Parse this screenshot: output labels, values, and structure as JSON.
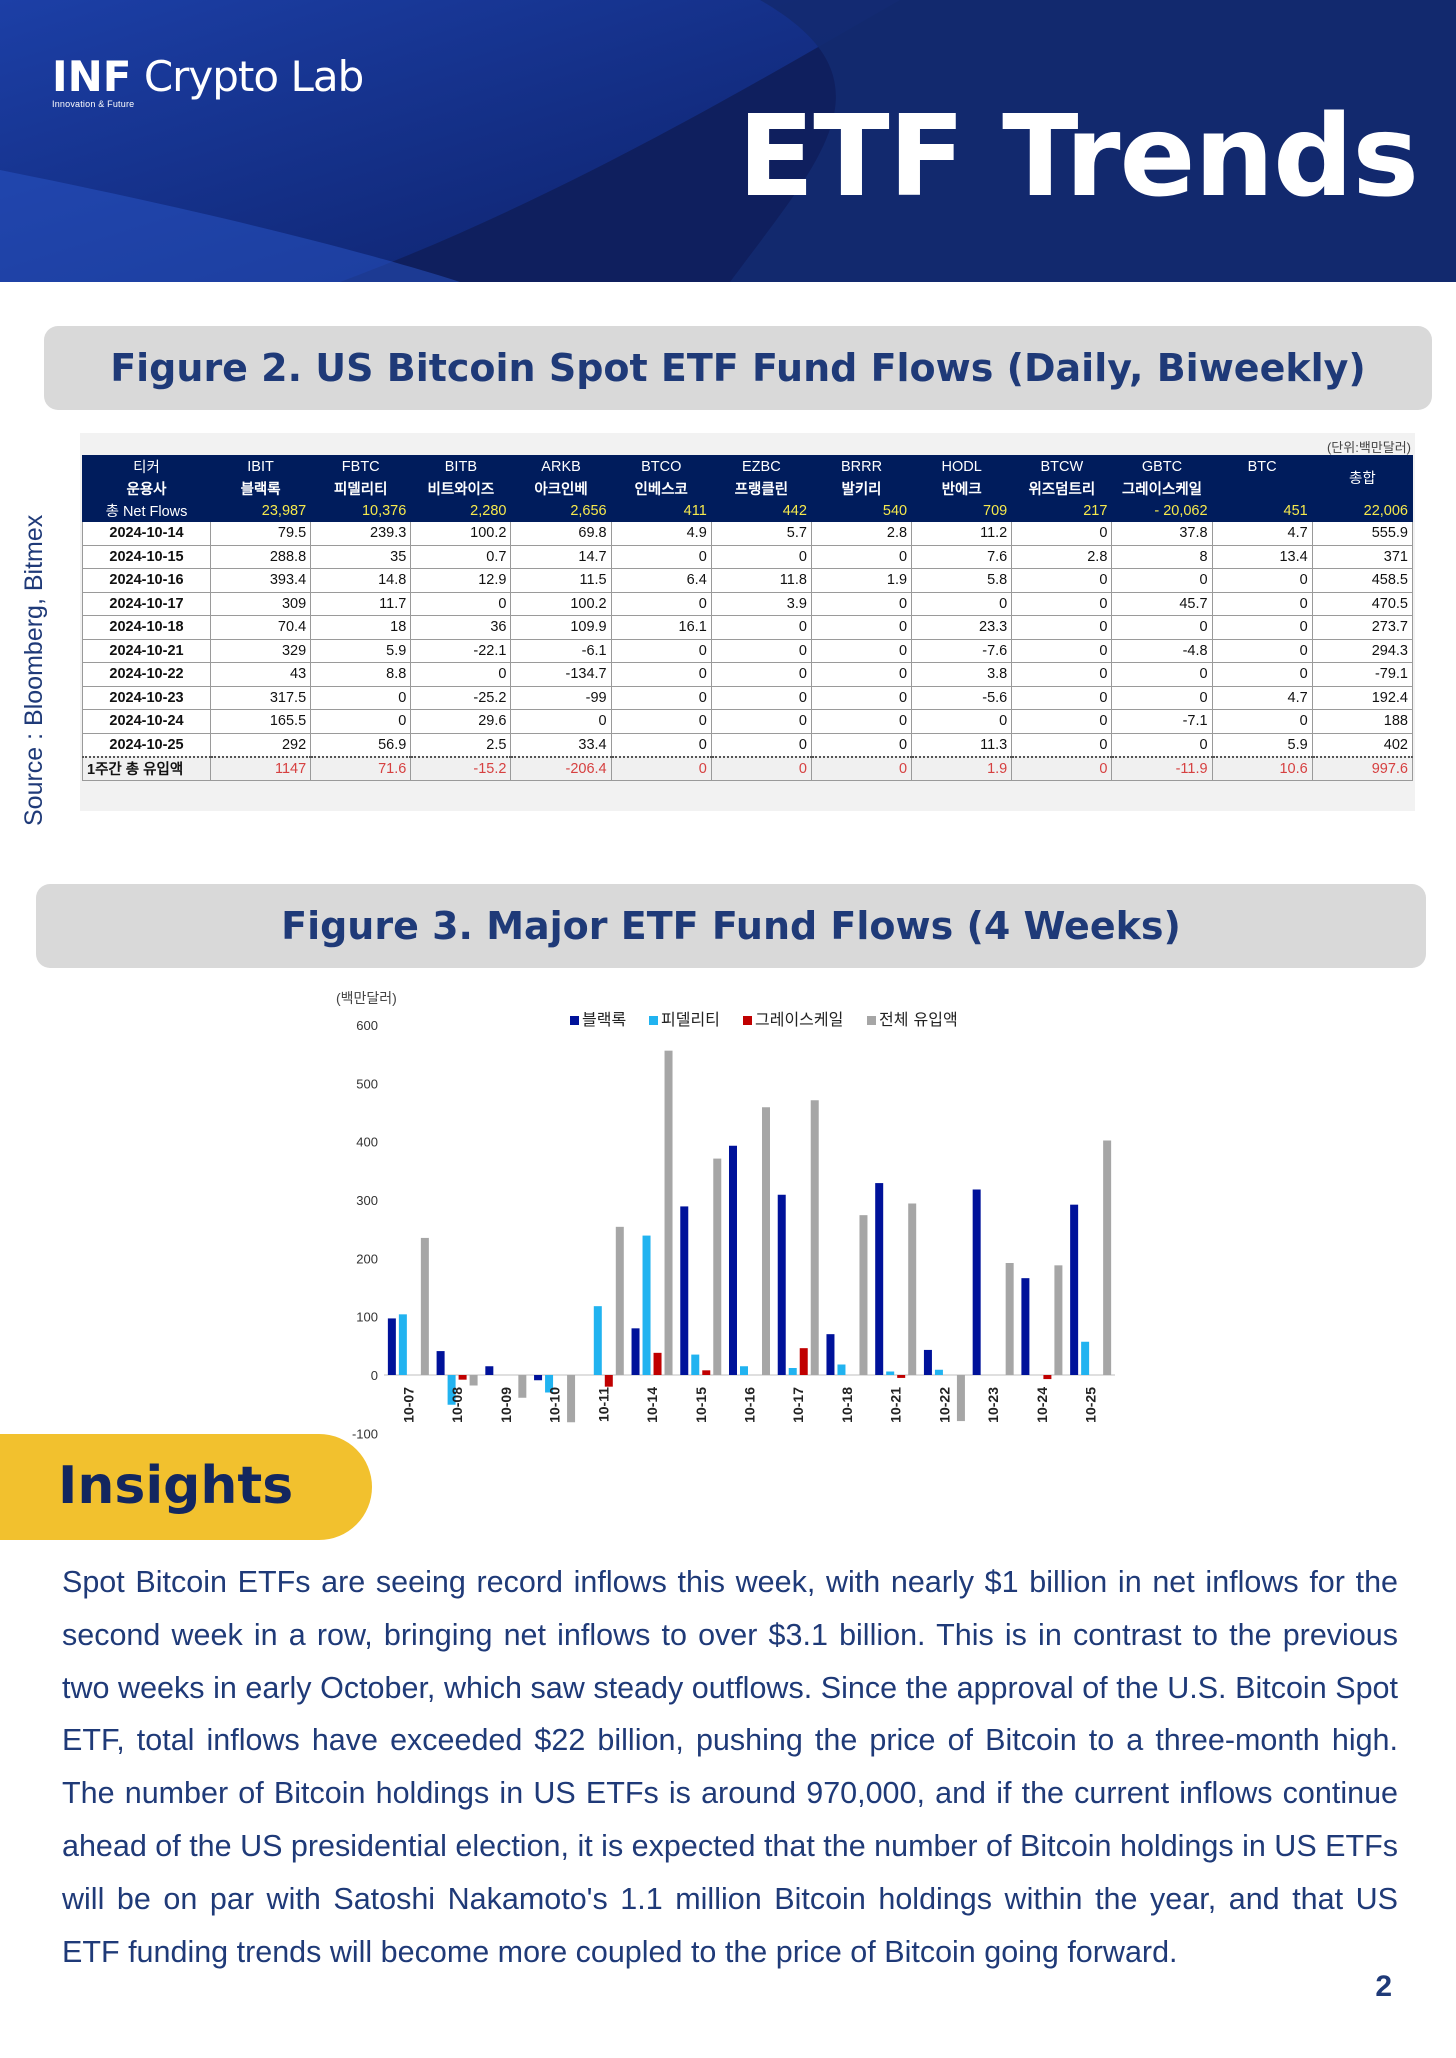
{
  "header": {
    "logo_bold": "INF",
    "logo_rest": " Crypto Lab",
    "logo_tagline": "Innovation & Future",
    "title": "ETF Trends"
  },
  "figure2": {
    "title": "Figure 2. US Bitcoin Spot ETF Fund Flows (Daily, Biweekly)",
    "unit": "(단위:백만달러)",
    "source": "Source : Bloomberg, Bitmex",
    "row_labels": {
      "ticker": "티커",
      "issuer": "운용사",
      "net_flows": "총 Net Flows",
      "total_col": "총합"
    },
    "tickers": [
      "IBIT",
      "FBTC",
      "BITB",
      "ARKB",
      "BTCO",
      "EZBC",
      "BRRR",
      "HODL",
      "BTCW",
      "GBTC",
      "BTC"
    ],
    "issuers": [
      "블랙록",
      "피델리티",
      "비트와이즈",
      "아크인베",
      "인베스코",
      "프랭클린",
      "발키리",
      "반에크",
      "위즈덤트리",
      "그레이스케일",
      ""
    ],
    "net_flows": [
      "23,987",
      "10,376",
      "2,280",
      "2,656",
      "411",
      "442",
      "540",
      "709",
      "217",
      "-        20,062",
      "451",
      "22,006"
    ],
    "rows": [
      {
        "date": "2024-10-14",
        "values": [
          "79.5",
          "239.3",
          "100.2",
          "69.8",
          "4.9",
          "5.7",
          "2.8",
          "11.2",
          "0",
          "37.8",
          "4.7",
          "555.9"
        ]
      },
      {
        "date": "2024-10-15",
        "values": [
          "288.8",
          "35",
          "0.7",
          "14.7",
          "0",
          "0",
          "0",
          "7.6",
          "2.8",
          "8",
          "13.4",
          "371"
        ]
      },
      {
        "date": "2024-10-16",
        "values": [
          "393.4",
          "14.8",
          "12.9",
          "11.5",
          "6.4",
          "11.8",
          "1.9",
          "5.8",
          "0",
          "0",
          "0",
          "458.5"
        ]
      },
      {
        "date": "2024-10-17",
        "values": [
          "309",
          "11.7",
          "0",
          "100.2",
          "0",
          "3.9",
          "0",
          "0",
          "0",
          "45.7",
          "0",
          "470.5"
        ]
      },
      {
        "date": "2024-10-18",
        "values": [
          "70.4",
          "18",
          "36",
          "109.9",
          "16.1",
          "0",
          "0",
          "23.3",
          "0",
          "0",
          "0",
          "273.7"
        ]
      },
      {
        "date": "2024-10-21",
        "values": [
          "329",
          "5.9",
          "-22.1",
          "-6.1",
          "0",
          "0",
          "0",
          "-7.6",
          "0",
          "-4.8",
          "0",
          "294.3"
        ]
      },
      {
        "date": "2024-10-22",
        "values": [
          "43",
          "8.8",
          "0",
          "-134.7",
          "0",
          "0",
          "0",
          "3.8",
          "0",
          "0",
          "0",
          "-79.1"
        ]
      },
      {
        "date": "2024-10-23",
        "values": [
          "317.5",
          "0",
          "-25.2",
          "-99",
          "0",
          "0",
          "0",
          "-5.6",
          "0",
          "0",
          "4.7",
          "192.4"
        ]
      },
      {
        "date": "2024-10-24",
        "values": [
          "165.5",
          "0",
          "29.6",
          "0",
          "0",
          "0",
          "0",
          "0",
          "0",
          "-7.1",
          "0",
          "188"
        ]
      },
      {
        "date": "2024-10-25",
        "values": [
          "292",
          "56.9",
          "2.5",
          "33.4",
          "0",
          "0",
          "0",
          "11.3",
          "0",
          "0",
          "5.9",
          "402"
        ]
      }
    ],
    "total_row": {
      "label": "1주간 총 유입액",
      "values": [
        "1147",
        "71.6",
        "-15.2",
        "-206.4",
        "0",
        "0",
        "0",
        "1.9",
        "0",
        "-11.9",
        "10.6",
        "997.6"
      ]
    }
  },
  "figure3": {
    "title": "Figure 3. Major ETF Fund Flows (4 Weeks)"
  },
  "chart_data": {
    "type": "bar",
    "ylabel": "(백만달러)",
    "ylim": [
      -100,
      600
    ],
    "yticks": [
      600,
      500,
      400,
      300,
      200,
      100,
      0,
      -100
    ],
    "legend_position": "top",
    "categories": [
      "10-07",
      "10-08",
      "10-09",
      "10-10",
      "10-11",
      "10-14",
      "10-15",
      "10-16",
      "10-17",
      "10-18",
      "10-21",
      "10-22",
      "10-23",
      "10-24",
      "10-25"
    ],
    "series": [
      {
        "name": "블랙록",
        "color": "#00129a",
        "values": [
          97,
          41,
          15,
          -9,
          0,
          80,
          289,
          393,
          309,
          70,
          329,
          43,
          318,
          166,
          292
        ]
      },
      {
        "name": "피델리티",
        "color": "#21b3f0",
        "values": [
          104,
          -51,
          0,
          -30,
          118,
          239,
          35,
          15,
          12,
          18,
          6,
          9,
          0,
          0,
          57
        ]
      },
      {
        "name": "그레이스케일",
        "color": "#c00000",
        "values": [
          0,
          -8,
          0,
          0,
          -20,
          38,
          8,
          0,
          46,
          0,
          -5,
          0,
          0,
          -7,
          0
        ]
      },
      {
        "name": "전체 유입액",
        "color": "#a6a6a6",
        "values": [
          235,
          -18,
          -39,
          -81,
          254,
          556,
          371,
          459,
          471,
          274,
          294,
          -79,
          192,
          188,
          402
        ]
      }
    ]
  },
  "insights": {
    "label": "Insights",
    "text": "Spot Bitcoin ETFs are seeing record inflows this week, with nearly $1 billion in net inflows for the second week in a row, bringing net inflows to over $3.1 billion. This is in contrast to the previous two weeks in early October, which saw steady outflows. Since the approval of the U.S. Bitcoin Spot ETF, total inflows have exceeded $22 billion, pushing the price of Bitcoin to a three-month high. The number of Bitcoin holdings in US ETFs is around 970,000, and if the current inflows continue ahead of the US presidential election, it is expected that the number of Bitcoin holdings in US ETFs will be on par with Satoshi Nakamoto's 1.1 million Bitcoin holdings within the year, and that US ETF funding trends will become more coupled to the price of Bitcoin going forward."
  },
  "page_number": "2"
}
